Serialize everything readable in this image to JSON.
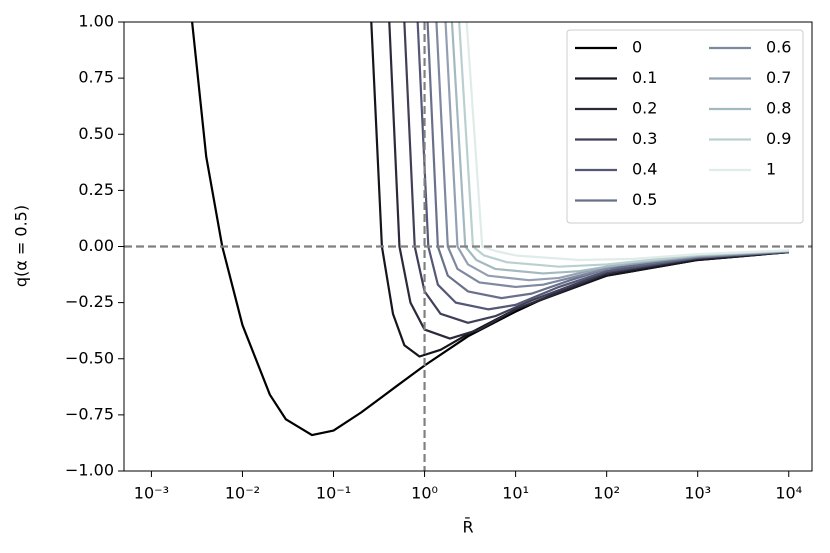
{
  "chart_data": {
    "type": "line",
    "xlabel": "R̄",
    "ylabel": "q(α = 0.5)",
    "xscale": "log",
    "xlim": [
      0.0005,
      18000
    ],
    "ylim": [
      -1,
      1
    ],
    "xticks": [
      {
        "value": 0.001,
        "label": "10⁻³"
      },
      {
        "value": 0.01,
        "label": "10⁻²"
      },
      {
        "value": 0.1,
        "label": "10⁻¹"
      },
      {
        "value": 1,
        "label": "10⁰"
      },
      {
        "value": 10,
        "label": "10¹"
      },
      {
        "value": 100,
        "label": "10²"
      },
      {
        "value": 1000,
        "label": "10³"
      },
      {
        "value": 10000,
        "label": "10⁴"
      }
    ],
    "yticks": [
      {
        "value": -1,
        "label": "−1.00"
      },
      {
        "value": -0.75,
        "label": "−0.75"
      },
      {
        "value": -0.5,
        "label": "−0.50"
      },
      {
        "value": -0.25,
        "label": "−0.25"
      },
      {
        "value": 0,
        "label": "0.00"
      },
      {
        "value": 0.25,
        "label": "0.25"
      },
      {
        "value": 0.5,
        "label": "0.50"
      },
      {
        "value": 0.75,
        "label": "0.75"
      },
      {
        "value": 1,
        "label": "1.00"
      }
    ],
    "hlines": [
      0
    ],
    "vlines": [
      1
    ],
    "reference_color": "#808080",
    "legend": "upper right",
    "legend_columns": 2,
    "series": [
      {
        "name": "0",
        "color": "#000000",
        "x": [
          0.0028,
          0.004,
          0.006,
          0.01,
          0.02,
          0.03,
          0.058,
          0.1,
          0.2,
          0.5,
          1,
          3,
          10,
          30,
          100,
          1000,
          10000
        ],
        "values": [
          1,
          0.4,
          0,
          -0.35,
          -0.66,
          -0.77,
          -0.84,
          -0.82,
          -0.74,
          -0.62,
          -0.53,
          -0.4,
          -0.29,
          -0.2,
          -0.13,
          -0.06,
          -0.025
        ]
      },
      {
        "name": "0.1",
        "color": "#15151d",
        "x": [
          0.26,
          0.34,
          0.45,
          0.6,
          0.88,
          1.5,
          3,
          10,
          100,
          1000,
          10000
        ],
        "values": [
          1,
          0,
          -0.3,
          -0.44,
          -0.49,
          -0.46,
          -0.39,
          -0.28,
          -0.13,
          -0.06,
          -0.025
        ]
      },
      {
        "name": "0.2",
        "color": "#2a2a3b",
        "x": [
          0.41,
          0.53,
          0.7,
          1.0,
          1.9,
          4,
          10,
          100,
          1000,
          10000
        ],
        "values": [
          1,
          0,
          -0.25,
          -0.37,
          -0.41,
          -0.37,
          -0.28,
          -0.12,
          -0.055,
          -0.025
        ]
      },
      {
        "name": "0.3",
        "color": "#3f3f58",
        "x": [
          0.6,
          0.78,
          1.0,
          1.5,
          3,
          6,
          15,
          100,
          1000,
          10000
        ],
        "values": [
          1,
          0,
          -0.2,
          -0.3,
          -0.34,
          -0.31,
          -0.24,
          -0.115,
          -0.05,
          -0.024
        ]
      },
      {
        "name": "0.4",
        "color": "#545876",
        "x": [
          0.84,
          1.1,
          1.4,
          2.2,
          5,
          10,
          30,
          100,
          1000,
          10000
        ],
        "values": [
          1,
          0,
          -0.17,
          -0.25,
          -0.28,
          -0.26,
          -0.18,
          -0.11,
          -0.05,
          -0.023
        ]
      },
      {
        "name": "0.5",
        "color": "#69708a",
        "x": [
          1.08,
          1.4,
          1.8,
          3,
          7,
          15,
          40,
          100,
          1000,
          10000
        ],
        "values": [
          1,
          0,
          -0.13,
          -0.2,
          -0.23,
          -0.21,
          -0.15,
          -0.1,
          -0.048,
          -0.022
        ]
      },
      {
        "name": "0.6",
        "color": "#7e889f",
        "x": [
          1.35,
          1.8,
          2.3,
          4,
          10,
          20,
          50,
          150,
          1000,
          10000
        ],
        "values": [
          1,
          0,
          -0.1,
          -0.16,
          -0.18,
          -0.17,
          -0.13,
          -0.08,
          -0.045,
          -0.021
        ]
      },
      {
        "name": "0.7",
        "color": "#93a0b3",
        "x": [
          1.7,
          2.3,
          3,
          5,
          14,
          30,
          100,
          1000,
          10000
        ],
        "values": [
          1,
          0,
          -0.08,
          -0.13,
          -0.15,
          -0.14,
          -0.09,
          -0.042,
          -0.02
        ]
      },
      {
        "name": "0.8",
        "color": "#a3b9c0",
        "x": [
          2.0,
          2.8,
          3.7,
          6,
          20,
          50,
          200,
          1000,
          10000
        ],
        "values": [
          1,
          0,
          -0.06,
          -0.1,
          -0.12,
          -0.11,
          -0.07,
          -0.04,
          -0.019
        ]
      },
      {
        "name": "0.9",
        "color": "#bad0d0",
        "x": [
          2.4,
          3.4,
          4.5,
          8,
          30,
          100,
          1000,
          10000
        ],
        "values": [
          1,
          0,
          -0.04,
          -0.07,
          -0.09,
          -0.08,
          -0.037,
          -0.018
        ]
      },
      {
        "name": "1",
        "color": "#e0ece9",
        "x": [
          2.9,
          4.3,
          6,
          10,
          50,
          200,
          1000,
          10000
        ],
        "values": [
          1,
          0,
          -0.02,
          -0.04,
          -0.06,
          -0.055,
          -0.034,
          -0.017
        ]
      }
    ]
  }
}
